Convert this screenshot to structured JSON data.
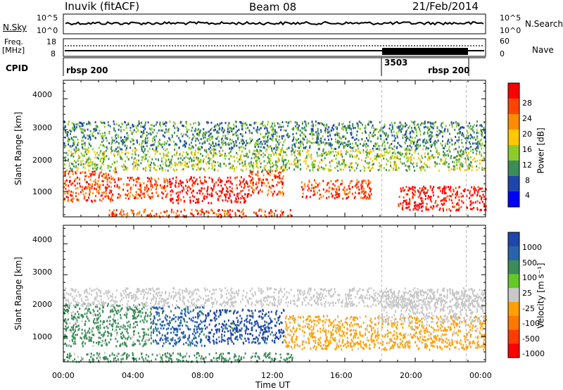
{
  "header": {
    "radar": "Inuvik (fitACF)",
    "beam": "Beam 08",
    "date": "21/Feb/2014"
  },
  "top_panels": {
    "nsky_label": "N.Sky",
    "nsky_ticks": [
      "10^5",
      "10^0"
    ],
    "nsearch_label": "N.Search",
    "nsearch_ticks": [
      "10^5",
      "10^0"
    ],
    "freq_label_1": "Freq.",
    "freq_label_2": "[MHz]",
    "freq_ticks": [
      "18",
      "8"
    ],
    "nave_label": "Nave",
    "nave_ticks": [
      "60",
      "0"
    ],
    "cpid_label": "CPID",
    "cpid_segments": [
      "rbsp 200",
      "3503",
      "rbsp 200"
    ]
  },
  "power_panel": {
    "ylabel": "Slant Range [km]",
    "yticks": [
      "4000",
      "3000",
      "2000",
      "1000"
    ],
    "cbar_label": "Power [dB]",
    "cbar_ticks": [
      "28",
      "24",
      "20",
      "16",
      "12",
      "8",
      "4"
    ],
    "cbar_colors": [
      "#ff0000",
      "#ff4400",
      "#ff8c00",
      "#ffc800",
      "#8ccc28",
      "#3c8c5a",
      "#1e46aa",
      "#0000ff"
    ]
  },
  "velocity_panel": {
    "ylabel": "Slant Range [km]",
    "yticks": [
      "4000",
      "3000",
      "2000",
      "1000"
    ],
    "cbar_label": "Velocity [m s⁻¹]",
    "cbar_ticks": [
      "1000",
      "500",
      "100",
      "25",
      "-25",
      "-100",
      "-500",
      "-1000"
    ],
    "cbar_colors": [
      "#1e46aa",
      "#2864aa",
      "#3c8c5a",
      "#64c828",
      "#c8c8c8",
      "#ffa000",
      "#ff7800",
      "#ff3c00",
      "#ff0000"
    ]
  },
  "x_axis": {
    "ticks": [
      "00:00",
      "04:00",
      "08:00",
      "12:00",
      "16:00",
      "20:00",
      "00:00"
    ],
    "label": "Time UT"
  },
  "chart_data": {
    "type": "heatmap",
    "x_unit": "hours UT",
    "xlim": [
      0,
      24
    ],
    "ylim": [
      180,
      4600
    ],
    "cpid_change_times": [
      18.1,
      22.9
    ],
    "power_regions": [
      {
        "t0": 0.0,
        "t1": 3.0,
        "r0": 700,
        "r1": 1700,
        "level": 24
      },
      {
        "t0": 3.0,
        "t1": 6.0,
        "r0": 800,
        "r1": 1500,
        "level": 24
      },
      {
        "t0": 6.0,
        "t1": 10.5,
        "r0": 650,
        "r1": 1500,
        "level": 28
      },
      {
        "t0": 10.5,
        "t1": 12.5,
        "r0": 900,
        "r1": 1700,
        "level": 24
      },
      {
        "t0": 13.5,
        "t1": 17.5,
        "r0": 800,
        "r1": 1400,
        "level": 24
      },
      {
        "t0": 19.0,
        "t1": 24.0,
        "r0": 400,
        "r1": 1200,
        "level": 28
      },
      {
        "t0": 2.5,
        "t1": 13.0,
        "r0": 200,
        "r1": 450,
        "level": 24
      },
      {
        "t0": 0.0,
        "t1": 24.0,
        "r0": 1700,
        "r1": 2400,
        "level": 12
      },
      {
        "t0": 0.0,
        "t1": 24.0,
        "r0": 2400,
        "r1": 3300,
        "level": 8
      }
    ],
    "velocity_regions": [
      {
        "t0": 0.0,
        "t1": 5.0,
        "r0": 700,
        "r1": 2100,
        "velocity": 100
      },
      {
        "t0": 5.0,
        "t1": 8.0,
        "r0": 700,
        "r1": 2000,
        "velocity": 500
      },
      {
        "t0": 8.0,
        "t1": 12.5,
        "r0": 800,
        "r1": 1900,
        "velocity": 1000
      },
      {
        "t0": 12.5,
        "t1": 24.0,
        "r0": 600,
        "r1": 1700,
        "velocity": -100
      },
      {
        "t0": 0.0,
        "t1": 13.0,
        "r0": 200,
        "r1": 500,
        "velocity": 100
      },
      {
        "t0": 0.0,
        "t1": 24.0,
        "r0": 2000,
        "r1": 2600,
        "velocity": 0
      },
      {
        "t0": 18.0,
        "t1": 24.0,
        "r0": 1500,
        "r1": 2500,
        "velocity": 0
      }
    ]
  }
}
